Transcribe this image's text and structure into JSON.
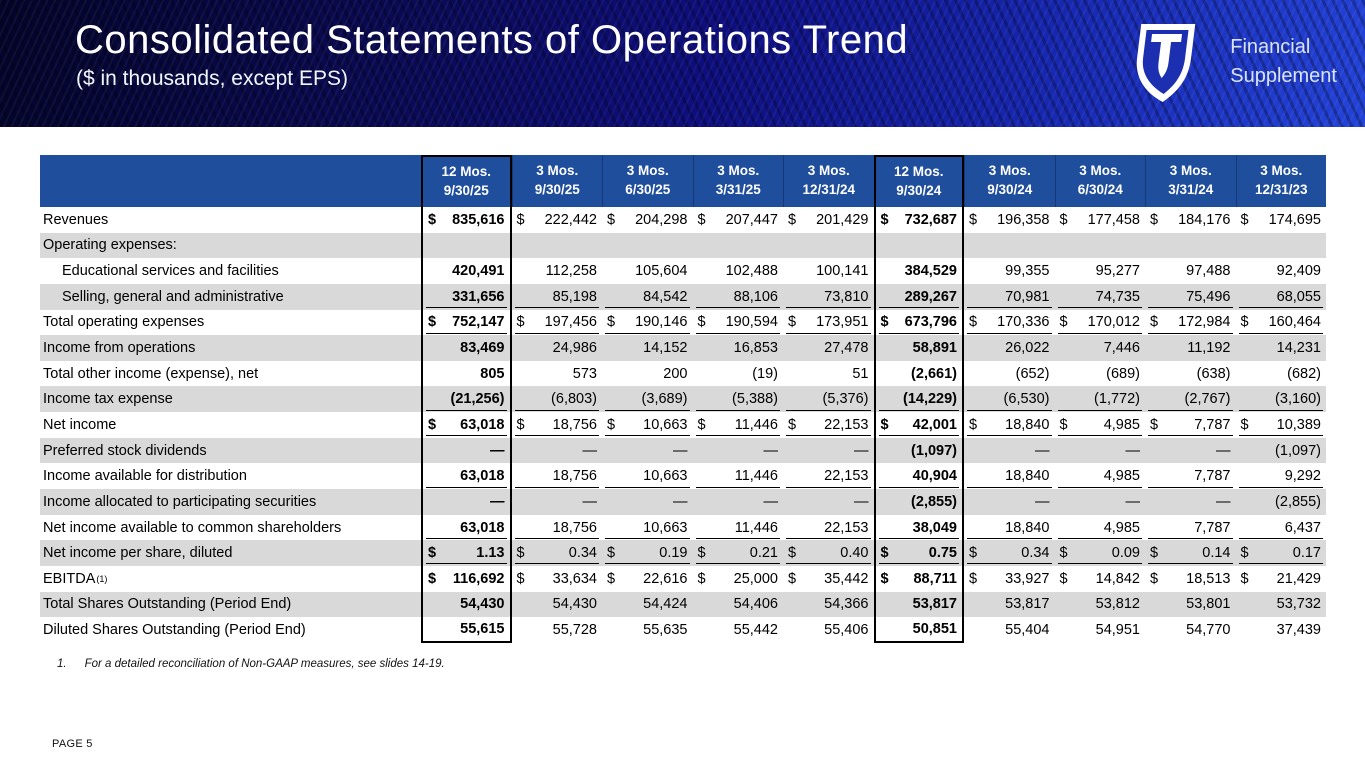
{
  "banner": {
    "title": "Consolidated Statements of Operations Trend",
    "subtitle": "($ in thousands, except EPS)",
    "brand_line1": "Financial",
    "brand_line2": "Supplement"
  },
  "colors": {
    "table_header_blue": "#1F4E9C",
    "row_stripe_gray": "#D9D9D9",
    "banner_navy": "#0a0a55",
    "banner_royal": "#2343d8"
  },
  "table": {
    "columns": [
      {
        "line1": "12 Mos.",
        "line2": "9/30/25",
        "boxed": true,
        "bold": true
      },
      {
        "line1": "3 Mos.",
        "line2": "9/30/25",
        "boxed": false,
        "bold": false
      },
      {
        "line1": "3 Mos.",
        "line2": "6/30/25",
        "boxed": false,
        "bold": false
      },
      {
        "line1": "3 Mos.",
        "line2": "3/31/25",
        "boxed": false,
        "bold": false
      },
      {
        "line1": "3 Mos.",
        "line2": "12/31/24",
        "boxed": false,
        "bold": false
      },
      {
        "line1": "12 Mos.",
        "line2": "9/30/24",
        "boxed": true,
        "bold": true
      },
      {
        "line1": "3 Mos.",
        "line2": "9/30/24",
        "boxed": false,
        "bold": false
      },
      {
        "line1": "3 Mos.",
        "line2": "6/30/24",
        "boxed": false,
        "bold": false
      },
      {
        "line1": "3 Mos.",
        "line2": "3/31/24",
        "boxed": false,
        "bold": false
      },
      {
        "line1": "3 Mos.",
        "line2": "12/31/23",
        "boxed": false,
        "bold": false
      }
    ],
    "rows": [
      {
        "label": "Revenues",
        "dollar": true,
        "values": [
          "835,616",
          "222,442",
          "204,298",
          "207,447",
          "201,429",
          "732,687",
          "196,358",
          "177,458",
          "184,176",
          "174,695"
        ]
      },
      {
        "label": "Operating expenses:",
        "values": [
          "",
          "",
          "",
          "",
          "",
          "",
          "",
          "",
          "",
          ""
        ]
      },
      {
        "label": "Educational services and facilities",
        "indent": true,
        "values": [
          "420,491",
          "112,258",
          "105,604",
          "102,488",
          "100,141",
          "384,529",
          "99,355",
          "95,277",
          "97,488",
          "92,409"
        ]
      },
      {
        "label": "Selling, general and administrative",
        "indent": true,
        "underline": true,
        "values": [
          "331,656",
          "85,198",
          "84,542",
          "88,106",
          "73,810",
          "289,267",
          "70,981",
          "74,735",
          "75,496",
          "68,055"
        ]
      },
      {
        "label": "Total operating expenses",
        "dollar": true,
        "underline": true,
        "values": [
          "752,147",
          "197,456",
          "190,146",
          "190,594",
          "173,951",
          "673,796",
          "170,336",
          "170,012",
          "172,984",
          "160,464"
        ]
      },
      {
        "label": "Income from operations",
        "values": [
          "83,469",
          "24,986",
          "14,152",
          "16,853",
          "27,478",
          "58,891",
          "26,022",
          "7,446",
          "11,192",
          "14,231"
        ]
      },
      {
        "label": "Total other income (expense), net",
        "values": [
          "805",
          "573",
          "200",
          "(19)",
          "51",
          "(2,661)",
          "(652)",
          "(689)",
          "(638)",
          "(682)"
        ]
      },
      {
        "label": "Income tax expense",
        "underline": true,
        "values": [
          "(21,256)",
          "(6,803)",
          "(3,689)",
          "(5,388)",
          "(5,376)",
          "(14,229)",
          "(6,530)",
          "(1,772)",
          "(2,767)",
          "(3,160)"
        ]
      },
      {
        "label": "Net income",
        "dollar": true,
        "underline": true,
        "values": [
          "63,018",
          "18,756",
          "10,663",
          "11,446",
          "22,153",
          "42,001",
          "18,840",
          "4,985",
          "7,787",
          "10,389"
        ]
      },
      {
        "label": "Preferred stock dividends",
        "values": [
          "—",
          "—",
          "—",
          "—",
          "—",
          "(1,097)",
          "—",
          "—",
          "—",
          "(1,097)"
        ]
      },
      {
        "label": "Income available for distribution",
        "underline": true,
        "values": [
          "63,018",
          "18,756",
          "10,663",
          "11,446",
          "22,153",
          "40,904",
          "18,840",
          "4,985",
          "7,787",
          "9,292"
        ]
      },
      {
        "label": "Income allocated to participating securities",
        "values": [
          "—",
          "—",
          "—",
          "—",
          "—",
          "(2,855)",
          "—",
          "—",
          "—",
          "(2,855)"
        ]
      },
      {
        "label": "Net income available to common shareholders",
        "underline": true,
        "values": [
          "63,018",
          "18,756",
          "10,663",
          "11,446",
          "22,153",
          "38,049",
          "18,840",
          "4,985",
          "7,787",
          "6,437"
        ]
      },
      {
        "label": "Net income per share, diluted",
        "dollar": true,
        "underline": true,
        "values": [
          "1.13",
          "0.34",
          "0.19",
          "0.21",
          "0.40",
          "0.75",
          "0.34",
          "0.09",
          "0.14",
          "0.17"
        ]
      },
      {
        "label": "EBITDA",
        "label_sup": "(1)",
        "dollar": true,
        "values": [
          "116,692",
          "33,634",
          "22,616",
          "25,000",
          "35,442",
          "88,711",
          "33,927",
          "14,842",
          "18,513",
          "21,429"
        ]
      },
      {
        "label": "Total Shares Outstanding (Period End)",
        "values": [
          "54,430",
          "54,430",
          "54,424",
          "54,406",
          "54,366",
          "53,817",
          "53,817",
          "53,812",
          "53,801",
          "53,732"
        ]
      },
      {
        "label": "Diluted Shares Outstanding (Period End)",
        "values": [
          "55,615",
          "55,728",
          "55,635",
          "55,442",
          "55,406",
          "50,851",
          "55,404",
          "54,951",
          "54,770",
          "37,439"
        ]
      }
    ]
  },
  "footnote": {
    "number": "1.",
    "text": "For a detailed reconciliation of Non-GAAP measures, see slides 14-19."
  },
  "page_label": "PAGE 5"
}
